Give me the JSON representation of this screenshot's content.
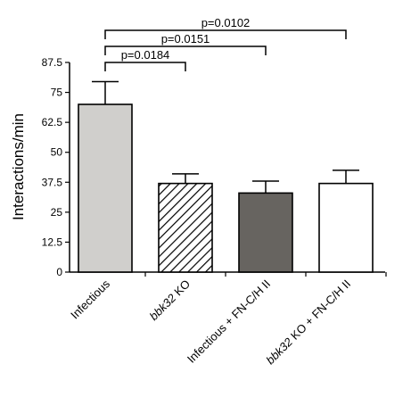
{
  "chart_data": {
    "type": "bar",
    "title": "",
    "xlabel": "",
    "ylabel": "Interactions/min",
    "ylim": [
      0,
      87.5
    ],
    "yticks": [
      "0",
      "12.5",
      "25",
      "37.5",
      "50",
      "62.5",
      "75",
      "87.5"
    ],
    "grid": false,
    "categories": [
      {
        "prefix": "Infectious",
        "italic": "",
        "suffix": ""
      },
      {
        "prefix": "",
        "italic": "bbk32",
        "suffix": " KO"
      },
      {
        "prefix": "Infectious + FN-C/H II",
        "italic": "",
        "suffix": ""
      },
      {
        "prefix": "",
        "italic": "bbk32",
        "suffix": " KO + FN-C/H II"
      }
    ],
    "values": [
      70,
      37,
      33,
      37
    ],
    "errors": [
      9.5,
      4,
      5,
      5.5
    ],
    "bar_styles": [
      {
        "fill": "#d0cfcc",
        "pattern": "none"
      },
      {
        "fill": "#ffffff",
        "pattern": "diagonal-hatch"
      },
      {
        "fill": "#676460",
        "pattern": "none"
      },
      {
        "fill": "#ffffff",
        "pattern": "none"
      }
    ],
    "significance": [
      {
        "from": 0,
        "to": 1,
        "label": "p=0.0184"
      },
      {
        "from": 0,
        "to": 2,
        "label": "p=0.0151"
      },
      {
        "from": 0,
        "to": 3,
        "label": "p=0.0102"
      }
    ]
  }
}
